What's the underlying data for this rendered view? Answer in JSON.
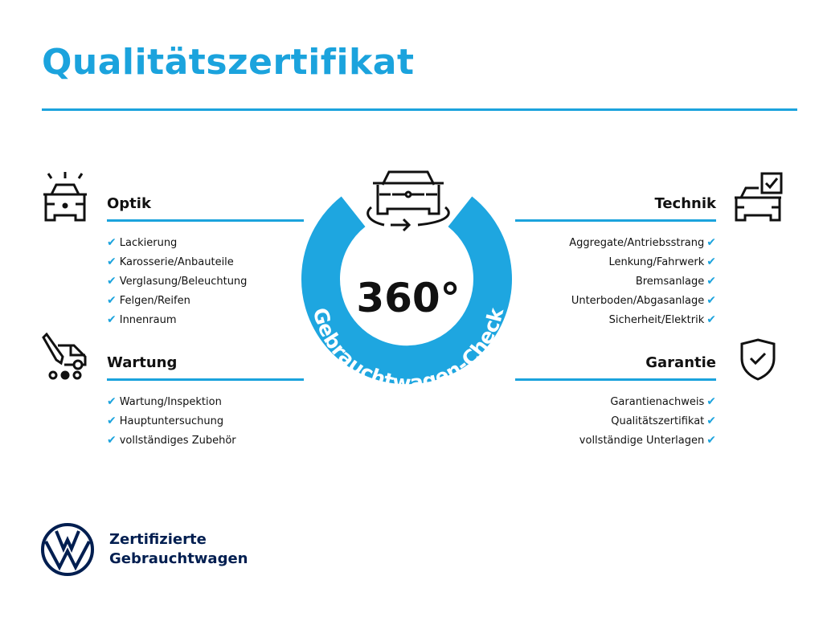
{
  "title": "Qualitätszertifikat",
  "colors": {
    "accent": "#1ba3dd",
    "brand_navy": "#001e50",
    "text": "#111111"
  },
  "center": {
    "value": "360°",
    "ring_text": "Gebrauchtwagen-Check",
    "icon": "car-rotate-icon"
  },
  "sections": {
    "optik": {
      "heading": "Optik",
      "icon": "car-light-icon",
      "items": [
        "Lackierung",
        "Karosserie/Anbauteile",
        "Verglasung/Beleuchtung",
        "Felgen/Reifen",
        "Innenraum"
      ]
    },
    "wartung": {
      "heading": "Wartung",
      "icon": "service-van-icon",
      "items": [
        "Wartung/Inspektion",
        "Hauptuntersuchung",
        "vollständiges Zubehör"
      ]
    },
    "technik": {
      "heading": "Technik",
      "icon": "car-checkbox-icon",
      "items": [
        "Aggregate/Antriebsstrang",
        "Lenkung/Fahrwerk",
        "Bremsanlage",
        "Unterboden/Abgasanlage",
        "Sicherheit/Elektrik"
      ]
    },
    "garantie": {
      "heading": "Garantie",
      "icon": "shield-check-icon",
      "items": [
        "Garantienachweis",
        "Qualitätszertifikat",
        "vollständige Unterlagen"
      ]
    }
  },
  "check_glyph": "✔",
  "brand": {
    "line1": "Zertifizierte",
    "line2": "Gebrauchtwagen",
    "logo": "vw-logo"
  }
}
